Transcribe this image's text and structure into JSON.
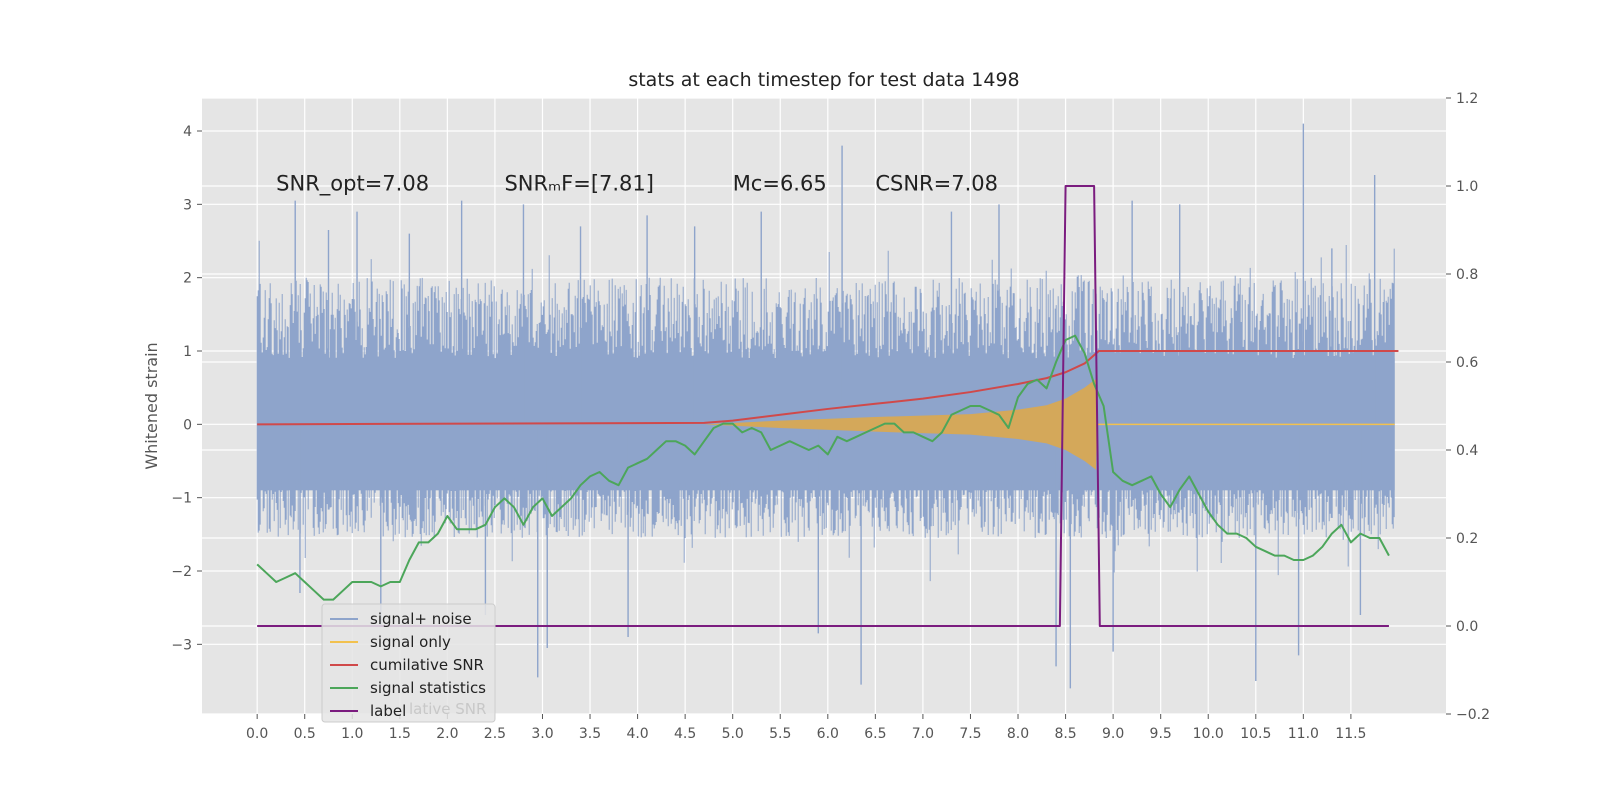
{
  "chart_data": {
    "type": "line",
    "title": "stats at each timestep for test data 1498",
    "ylabel": "Whitened strain",
    "xlabel": "",
    "xlim": [
      -0.58,
      12.5
    ],
    "ylim": [
      -3.95,
      4.45
    ],
    "y2lim": [
      -0.2,
      1.2
    ],
    "grid": true,
    "x_ticks": [
      "0.0",
      "0.5",
      "1.0",
      "1.5",
      "2.0",
      "2.5",
      "3.0",
      "3.5",
      "4.0",
      "4.5",
      "5.0",
      "5.5",
      "6.0",
      "6.5",
      "7.0",
      "7.5",
      "8.0",
      "8.5",
      "9.0",
      "9.5",
      "10.0",
      "10.5",
      "11.0",
      "11.5"
    ],
    "y_ticks": [
      "4",
      "3",
      "2",
      "1",
      "0",
      "−1",
      "−2",
      "−3"
    ],
    "y2_ticks": [
      "1.2",
      "1.0",
      "0.8",
      "0.6",
      "0.4",
      "0.2",
      "0.0",
      "−0.2"
    ],
    "annotations": [
      {
        "text": "SNR_opt=7.08",
        "x": 0.2
      },
      {
        "text": "SNRₘF=[7.81]",
        "x": 2.6
      },
      {
        "text": "Mᴄ=6.65",
        "x": 5.0
      },
      {
        "text": "CSNR=7.08",
        "x": 6.5
      }
    ],
    "annotation_y": 3.3,
    "legend": {
      "position": "lower-left",
      "entries": [
        {
          "label": "signal+ noise",
          "color": "#8ea4cb"
        },
        {
          "label": "signal only",
          "color": "#f2c14e"
        },
        {
          "label": "cumilative SNR",
          "color": "#d0494a"
        },
        {
          "label": "signal statistics",
          "color": "#4ca65a"
        },
        {
          "label": "label",
          "color": "#7b1c7f"
        }
      ],
      "ghost_text": "lative SNR"
    },
    "series": [
      {
        "name": "signal+ noise",
        "axis": "left",
        "color": "#8ea4cb",
        "x_start": 0.0,
        "x_end": 11.96,
        "band_low": -1.55,
        "band_high": 2.0,
        "extremes": [
          {
            "x": 0.4,
            "y": 3.05
          },
          {
            "x": 0.45,
            "y": -2.3
          },
          {
            "x": 0.75,
            "y": 2.65
          },
          {
            "x": 1.05,
            "y": 2.9
          },
          {
            "x": 1.3,
            "y": -2.75
          },
          {
            "x": 1.6,
            "y": 2.6
          },
          {
            "x": 2.15,
            "y": 3.05
          },
          {
            "x": 2.4,
            "y": -2.6
          },
          {
            "x": 2.8,
            "y": 3.0
          },
          {
            "x": 2.95,
            "y": -3.45
          },
          {
            "x": 3.05,
            "y": -3.05
          },
          {
            "x": 3.4,
            "y": 2.7
          },
          {
            "x": 3.9,
            "y": -2.9
          },
          {
            "x": 4.1,
            "y": 2.85
          },
          {
            "x": 4.6,
            "y": 2.7
          },
          {
            "x": 5.3,
            "y": 2.9
          },
          {
            "x": 5.9,
            "y": -2.85
          },
          {
            "x": 6.15,
            "y": 3.8
          },
          {
            "x": 6.35,
            "y": -3.55
          },
          {
            "x": 7.3,
            "y": 2.9
          },
          {
            "x": 7.8,
            "y": 3.0
          },
          {
            "x": 8.4,
            "y": -3.3
          },
          {
            "x": 8.55,
            "y": -3.6
          },
          {
            "x": 9.0,
            "y": -3.1
          },
          {
            "x": 9.2,
            "y": 3.05
          },
          {
            "x": 9.7,
            "y": 3.0
          },
          {
            "x": 10.5,
            "y": -3.5
          },
          {
            "x": 10.95,
            "y": -3.15
          },
          {
            "x": 11.0,
            "y": 4.1
          },
          {
            "x": 11.3,
            "y": 2.4
          },
          {
            "x": 11.75,
            "y": 3.4
          },
          {
            "x": 11.6,
            "y": -2.6
          }
        ]
      },
      {
        "name": "signal only",
        "axis": "left",
        "color": "#f2c14e",
        "envelope": [
          {
            "x": 0.0,
            "a": 0.0
          },
          {
            "x": 4.7,
            "a": 0.0
          },
          {
            "x": 5.5,
            "a": 0.05
          },
          {
            "x": 6.5,
            "a": 0.1
          },
          {
            "x": 7.5,
            "a": 0.14
          },
          {
            "x": 8.0,
            "a": 0.2
          },
          {
            "x": 8.3,
            "a": 0.26
          },
          {
            "x": 8.5,
            "a": 0.35
          },
          {
            "x": 8.7,
            "a": 0.5
          },
          {
            "x": 8.82,
            "a": 0.62
          },
          {
            "x": 8.83,
            "a": 0.0
          },
          {
            "x": 12.0,
            "a": 0.0
          }
        ]
      },
      {
        "name": "cumilative SNR",
        "axis": "left",
        "color": "#d0494a",
        "x": [
          0.0,
          4.7,
          5.0,
          5.5,
          6.0,
          6.5,
          7.0,
          7.5,
          8.0,
          8.3,
          8.5,
          8.7,
          8.85,
          12.0
        ],
        "y": [
          0.0,
          0.02,
          0.05,
          0.13,
          0.21,
          0.28,
          0.35,
          0.44,
          0.55,
          0.63,
          0.71,
          0.83,
          1.0,
          1.0
        ]
      },
      {
        "name": "signal statistics",
        "axis": "right",
        "color": "#4ca65a",
        "x": [
          0.0,
          0.1,
          0.2,
          0.3,
          0.4,
          0.5,
          0.6,
          0.7,
          0.8,
          0.9,
          1.0,
          1.1,
          1.2,
          1.3,
          1.4,
          1.5,
          1.6,
          1.7,
          1.8,
          1.9,
          2.0,
          2.1,
          2.2,
          2.3,
          2.4,
          2.5,
          2.6,
          2.7,
          2.8,
          2.9,
          3.0,
          3.1,
          3.2,
          3.3,
          3.4,
          3.5,
          3.6,
          3.7,
          3.8,
          3.9,
          4.0,
          4.1,
          4.2,
          4.3,
          4.4,
          4.5,
          4.6,
          4.7,
          4.8,
          4.9,
          5.0,
          5.1,
          5.2,
          5.3,
          5.4,
          5.5,
          5.6,
          5.7,
          5.8,
          5.9,
          6.0,
          6.1,
          6.2,
          6.3,
          6.4,
          6.5,
          6.6,
          6.7,
          6.8,
          6.9,
          7.0,
          7.1,
          7.2,
          7.3,
          7.4,
          7.5,
          7.6,
          7.7,
          7.8,
          7.9,
          8.0,
          8.1,
          8.2,
          8.3,
          8.4,
          8.5,
          8.6,
          8.7,
          8.8,
          8.9,
          9.0,
          9.1,
          9.2,
          9.3,
          9.4,
          9.5,
          9.6,
          9.7,
          9.8,
          9.9,
          10.0,
          10.1,
          10.2,
          10.3,
          10.4,
          10.5,
          10.6,
          10.7,
          10.8,
          10.9,
          11.0,
          11.1,
          11.2,
          11.3,
          11.4,
          11.5,
          11.6,
          11.7,
          11.8,
          11.9
        ],
        "y": [
          0.14,
          0.12,
          0.1,
          0.11,
          0.12,
          0.1,
          0.08,
          0.06,
          0.06,
          0.08,
          0.1,
          0.1,
          0.1,
          0.09,
          0.1,
          0.1,
          0.15,
          0.19,
          0.19,
          0.21,
          0.25,
          0.22,
          0.22,
          0.22,
          0.23,
          0.27,
          0.29,
          0.27,
          0.23,
          0.27,
          0.29,
          0.25,
          0.27,
          0.29,
          0.32,
          0.34,
          0.35,
          0.33,
          0.32,
          0.36,
          0.37,
          0.38,
          0.4,
          0.42,
          0.42,
          0.41,
          0.39,
          0.42,
          0.45,
          0.46,
          0.46,
          0.44,
          0.45,
          0.44,
          0.4,
          0.41,
          0.42,
          0.41,
          0.4,
          0.41,
          0.39,
          0.43,
          0.42,
          0.43,
          0.44,
          0.45,
          0.46,
          0.46,
          0.44,
          0.44,
          0.43,
          0.42,
          0.44,
          0.48,
          0.49,
          0.5,
          0.5,
          0.49,
          0.48,
          0.45,
          0.52,
          0.55,
          0.56,
          0.54,
          0.6,
          0.65,
          0.66,
          0.62,
          0.55,
          0.5,
          0.35,
          0.33,
          0.32,
          0.33,
          0.34,
          0.3,
          0.27,
          0.31,
          0.34,
          0.3,
          0.26,
          0.23,
          0.21,
          0.21,
          0.2,
          0.18,
          0.17,
          0.16,
          0.16,
          0.15,
          0.15,
          0.16,
          0.18,
          0.21,
          0.23,
          0.19,
          0.21,
          0.2,
          0.2,
          0.16
        ]
      },
      {
        "name": "label",
        "axis": "right",
        "color": "#7b1c7f",
        "x": [
          0.0,
          8.44,
          8.5,
          8.8,
          8.86,
          11.9
        ],
        "y": [
          0.0,
          0.0,
          1.0,
          1.0,
          0.0,
          0.0
        ]
      }
    ]
  }
}
